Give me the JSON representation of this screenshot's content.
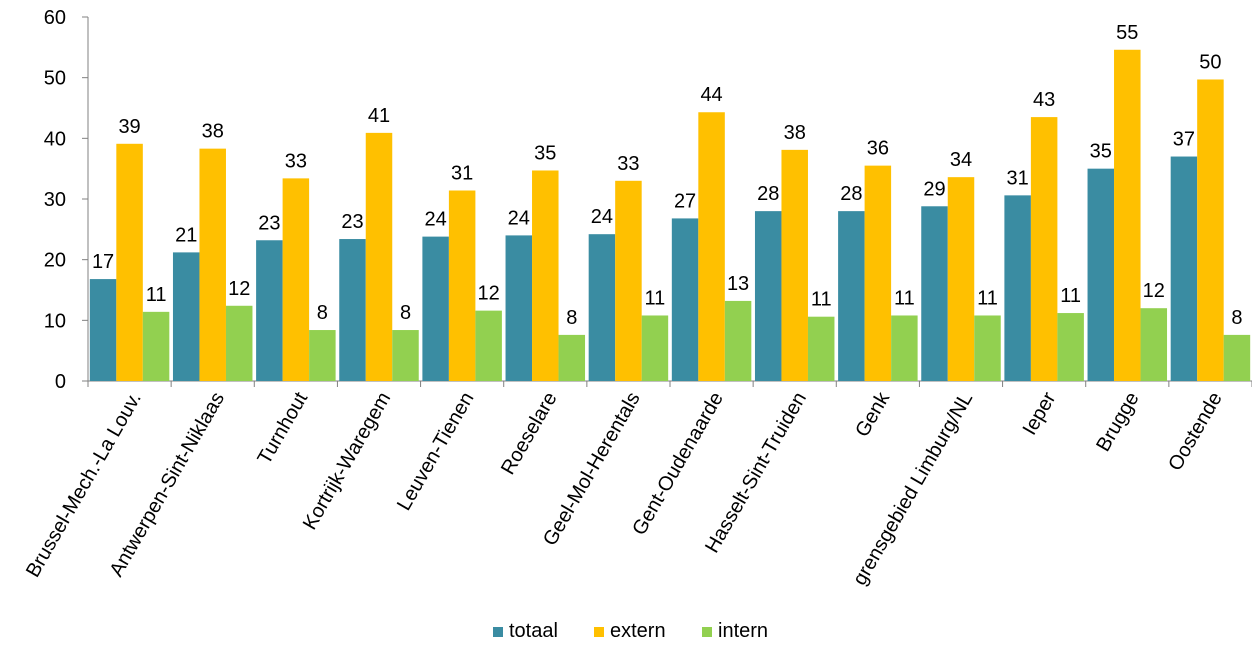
{
  "chart_data": {
    "type": "bar",
    "categories": [
      "Brussel-Mech.-La Louv.",
      "Antwerpen-Sint-Niklaas",
      "Turnhout",
      "Kortrijk-Waregem",
      "Leuven-Tienen",
      "Roeselare",
      "Geel-Mol-Herentals",
      "Gent-Oudenaarde",
      "Hasselt-Sint-Truiden",
      "Genk",
      "grensgebied Limburg/NL",
      "Ieper",
      "Brugge",
      "Oostende"
    ],
    "series": [
      {
        "name": "totaal",
        "color": "#3a8ca2",
        "values": [
          16.8,
          21.2,
          23.2,
          23.4,
          23.8,
          24.0,
          24.2,
          26.8,
          28.0,
          28.0,
          28.8,
          30.6,
          35.0,
          37.0
        ],
        "labels": [
          "17",
          "21",
          "23",
          "23",
          "24",
          "24",
          "24",
          "27",
          "28",
          "28",
          "29",
          "31",
          "35",
          "37"
        ]
      },
      {
        "name": "extern",
        "color": "#ffc000",
        "values": [
          39.1,
          38.3,
          33.4,
          40.9,
          31.4,
          34.7,
          33.0,
          44.3,
          38.1,
          35.5,
          33.6,
          43.5,
          54.6,
          49.7
        ],
        "labels": [
          "39",
          "38",
          "33",
          "41",
          "31",
          "35",
          "33",
          "44",
          "38",
          "36",
          "34",
          "43",
          "55",
          "50"
        ]
      },
      {
        "name": "intern",
        "color": "#92d050",
        "values": [
          11.4,
          12.4,
          8.4,
          8.4,
          11.6,
          7.6,
          10.8,
          13.2,
          10.6,
          10.8,
          10.8,
          11.2,
          12.0,
          7.6
        ],
        "labels": [
          "11",
          "12",
          "8",
          "8",
          "12",
          "8",
          "11",
          "13",
          "11",
          "11",
          "11",
          "11",
          "12",
          "8"
        ]
      }
    ],
    "y_ticks": [
      "0",
      "10",
      "20",
      "30",
      "40",
      "50",
      "60"
    ],
    "ylim": [
      0,
      60
    ],
    "legend_position": "bottom",
    "grid": false
  }
}
